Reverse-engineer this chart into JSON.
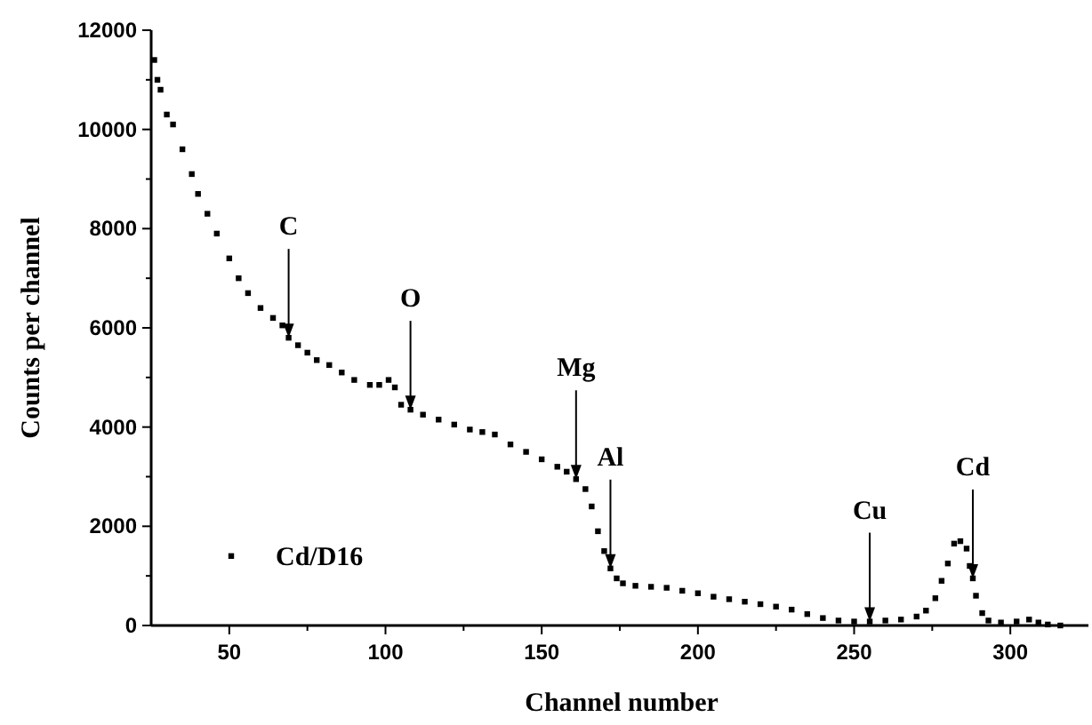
{
  "chart_data": {
    "type": "scatter",
    "xlabel": "Channel number",
    "ylabel": "Counts per channel",
    "xlim": [
      25,
      325
    ],
    "ylim": [
      0,
      12000
    ],
    "xticks": [
      50,
      {
        "value": 75,
        "label": null
      },
      100,
      {
        "value": 125,
        "label": null
      },
      150,
      {
        "value": 175,
        "label": null
      },
      200,
      {
        "value": 225,
        "label": null
      },
      250,
      {
        "value": 275,
        "label": null
      },
      300
    ],
    "yticks": [
      0,
      {
        "value": 1000,
        "label": null
      },
      2000,
      {
        "value": 3000,
        "label": null
      },
      4000,
      {
        "value": 5000,
        "label": null
      },
      6000,
      {
        "value": 7000,
        "label": null
      },
      8000,
      {
        "value": 9000,
        "label": null
      },
      10000,
      {
        "value": 11000,
        "label": null
      },
      12000
    ],
    "marker": "square",
    "legend": "bottom left",
    "grid": false,
    "annotations": [
      {
        "text": "C",
        "x": 69,
        "y": 5800
      },
      {
        "text": "O",
        "x": 108,
        "y": 4350
      },
      {
        "text": "Mg",
        "x": 161,
        "y": 2950
      },
      {
        "text": "Al",
        "x": 172,
        "y": 1150
      },
      {
        "text": "Cu",
        "x": 255,
        "y": 80
      },
      {
        "text": "Cd",
        "x": 288,
        "y": 950
      }
    ],
    "series": [
      {
        "name": "Cd/D16",
        "color": "#000000",
        "x": [
          26,
          27,
          28,
          30,
          32,
          35,
          38,
          40,
          43,
          46,
          50,
          53,
          56,
          60,
          64,
          67,
          69,
          72,
          75,
          78,
          82,
          86,
          90,
          95,
          98,
          101,
          103,
          105,
          108,
          112,
          117,
          122,
          127,
          131,
          135,
          140,
          145,
          150,
          155,
          158,
          161,
          164,
          166,
          168,
          170,
          172,
          174,
          176,
          180,
          185,
          190,
          195,
          200,
          205,
          210,
          215,
          220,
          225,
          230,
          235,
          240,
          245,
          250,
          255,
          260,
          265,
          270,
          273,
          276,
          278,
          280,
          282,
          284,
          286,
          287,
          288,
          289,
          291,
          293,
          297,
          302,
          306,
          309,
          312,
          316
        ],
        "values": [
          11400,
          11000,
          10800,
          10300,
          10100,
          9600,
          9100,
          8700,
          8300,
          7900,
          7400,
          7000,
          6700,
          6400,
          6200,
          6050,
          5800,
          5650,
          5500,
          5350,
          5250,
          5100,
          4950,
          4850,
          4850,
          4950,
          4800,
          4450,
          4350,
          4250,
          4150,
          4050,
          3950,
          3900,
          3850,
          3650,
          3500,
          3350,
          3200,
          3100,
          2950,
          2750,
          2400,
          1900,
          1500,
          1150,
          950,
          850,
          800,
          780,
          760,
          700,
          650,
          580,
          530,
          480,
          430,
          380,
          320,
          230,
          150,
          100,
          80,
          80,
          100,
          120,
          180,
          300,
          550,
          900,
          1250,
          1650,
          1700,
          1550,
          1200,
          950,
          600,
          250,
          100,
          60,
          80,
          120,
          60,
          20,
          0
        ]
      }
    ]
  }
}
